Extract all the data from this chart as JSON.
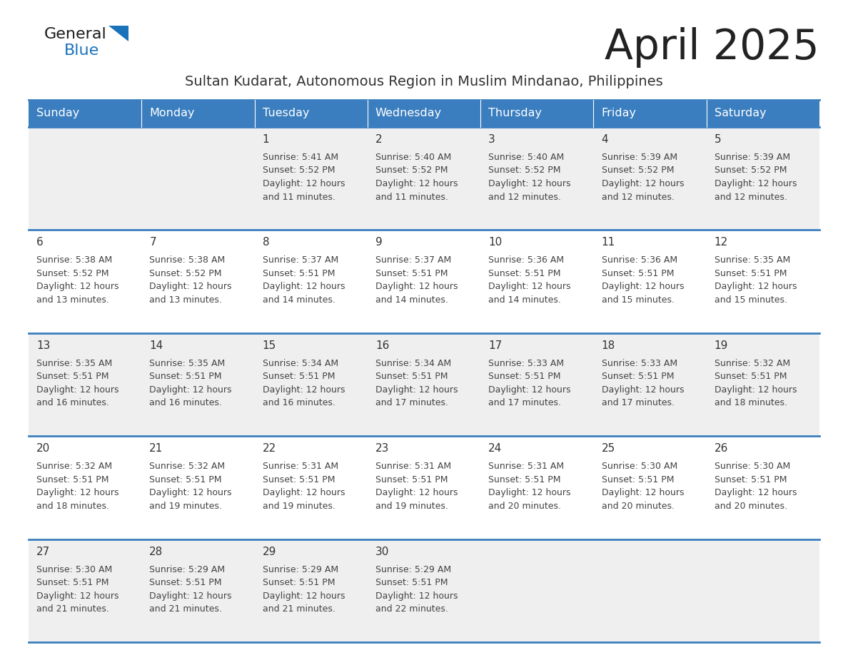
{
  "title": "April 2025",
  "subtitle": "Sultan Kudarat, Autonomous Region in Muslim Mindanao, Philippines",
  "days_of_week": [
    "Sunday",
    "Monday",
    "Tuesday",
    "Wednesday",
    "Thursday",
    "Friday",
    "Saturday"
  ],
  "header_bg": "#3a7ebf",
  "header_text": "#ffffff",
  "row_bg_light": "#efefef",
  "row_bg_white": "#ffffff",
  "cell_border": "#3a7ebf",
  "title_color": "#222222",
  "subtitle_color": "#333333",
  "day_num_color": "#333333",
  "cell_text_color": "#444444",
  "logo_general_color": "#1a1a1a",
  "logo_blue_color": "#1a72bb",
  "calendar_data": [
    [
      null,
      null,
      {
        "day": 1,
        "sunrise": "5:41 AM",
        "sunset": "5:52 PM",
        "daylight": "Daylight: 12 hours",
        "daylight2": "and 11 minutes."
      },
      {
        "day": 2,
        "sunrise": "5:40 AM",
        "sunset": "5:52 PM",
        "daylight": "Daylight: 12 hours",
        "daylight2": "and 11 minutes."
      },
      {
        "day": 3,
        "sunrise": "5:40 AM",
        "sunset": "5:52 PM",
        "daylight": "Daylight: 12 hours",
        "daylight2": "and 12 minutes."
      },
      {
        "day": 4,
        "sunrise": "5:39 AM",
        "sunset": "5:52 PM",
        "daylight": "Daylight: 12 hours",
        "daylight2": "and 12 minutes."
      },
      {
        "day": 5,
        "sunrise": "5:39 AM",
        "sunset": "5:52 PM",
        "daylight": "Daylight: 12 hours",
        "daylight2": "and 12 minutes."
      }
    ],
    [
      {
        "day": 6,
        "sunrise": "5:38 AM",
        "sunset": "5:52 PM",
        "daylight": "Daylight: 12 hours",
        "daylight2": "and 13 minutes."
      },
      {
        "day": 7,
        "sunrise": "5:38 AM",
        "sunset": "5:52 PM",
        "daylight": "Daylight: 12 hours",
        "daylight2": "and 13 minutes."
      },
      {
        "day": 8,
        "sunrise": "5:37 AM",
        "sunset": "5:51 PM",
        "daylight": "Daylight: 12 hours",
        "daylight2": "and 14 minutes."
      },
      {
        "day": 9,
        "sunrise": "5:37 AM",
        "sunset": "5:51 PM",
        "daylight": "Daylight: 12 hours",
        "daylight2": "and 14 minutes."
      },
      {
        "day": 10,
        "sunrise": "5:36 AM",
        "sunset": "5:51 PM",
        "daylight": "Daylight: 12 hours",
        "daylight2": "and 14 minutes."
      },
      {
        "day": 11,
        "sunrise": "5:36 AM",
        "sunset": "5:51 PM",
        "daylight": "Daylight: 12 hours",
        "daylight2": "and 15 minutes."
      },
      {
        "day": 12,
        "sunrise": "5:35 AM",
        "sunset": "5:51 PM",
        "daylight": "Daylight: 12 hours",
        "daylight2": "and 15 minutes."
      }
    ],
    [
      {
        "day": 13,
        "sunrise": "5:35 AM",
        "sunset": "5:51 PM",
        "daylight": "Daylight: 12 hours",
        "daylight2": "and 16 minutes."
      },
      {
        "day": 14,
        "sunrise": "5:35 AM",
        "sunset": "5:51 PM",
        "daylight": "Daylight: 12 hours",
        "daylight2": "and 16 minutes."
      },
      {
        "day": 15,
        "sunrise": "5:34 AM",
        "sunset": "5:51 PM",
        "daylight": "Daylight: 12 hours",
        "daylight2": "and 16 minutes."
      },
      {
        "day": 16,
        "sunrise": "5:34 AM",
        "sunset": "5:51 PM",
        "daylight": "Daylight: 12 hours",
        "daylight2": "and 17 minutes."
      },
      {
        "day": 17,
        "sunrise": "5:33 AM",
        "sunset": "5:51 PM",
        "daylight": "Daylight: 12 hours",
        "daylight2": "and 17 minutes."
      },
      {
        "day": 18,
        "sunrise": "5:33 AM",
        "sunset": "5:51 PM",
        "daylight": "Daylight: 12 hours",
        "daylight2": "and 17 minutes."
      },
      {
        "day": 19,
        "sunrise": "5:32 AM",
        "sunset": "5:51 PM",
        "daylight": "Daylight: 12 hours",
        "daylight2": "and 18 minutes."
      }
    ],
    [
      {
        "day": 20,
        "sunrise": "5:32 AM",
        "sunset": "5:51 PM",
        "daylight": "Daylight: 12 hours",
        "daylight2": "and 18 minutes."
      },
      {
        "day": 21,
        "sunrise": "5:32 AM",
        "sunset": "5:51 PM",
        "daylight": "Daylight: 12 hours",
        "daylight2": "and 19 minutes."
      },
      {
        "day": 22,
        "sunrise": "5:31 AM",
        "sunset": "5:51 PM",
        "daylight": "Daylight: 12 hours",
        "daylight2": "and 19 minutes."
      },
      {
        "day": 23,
        "sunrise": "5:31 AM",
        "sunset": "5:51 PM",
        "daylight": "Daylight: 12 hours",
        "daylight2": "and 19 minutes."
      },
      {
        "day": 24,
        "sunrise": "5:31 AM",
        "sunset": "5:51 PM",
        "daylight": "Daylight: 12 hours",
        "daylight2": "and 20 minutes."
      },
      {
        "day": 25,
        "sunrise": "5:30 AM",
        "sunset": "5:51 PM",
        "daylight": "Daylight: 12 hours",
        "daylight2": "and 20 minutes."
      },
      {
        "day": 26,
        "sunrise": "5:30 AM",
        "sunset": "5:51 PM",
        "daylight": "Daylight: 12 hours",
        "daylight2": "and 20 minutes."
      }
    ],
    [
      {
        "day": 27,
        "sunrise": "5:30 AM",
        "sunset": "5:51 PM",
        "daylight": "Daylight: 12 hours",
        "daylight2": "and 21 minutes."
      },
      {
        "day": 28,
        "sunrise": "5:29 AM",
        "sunset": "5:51 PM",
        "daylight": "Daylight: 12 hours",
        "daylight2": "and 21 minutes."
      },
      {
        "day": 29,
        "sunrise": "5:29 AM",
        "sunset": "5:51 PM",
        "daylight": "Daylight: 12 hours",
        "daylight2": "and 21 minutes."
      },
      {
        "day": 30,
        "sunrise": "5:29 AM",
        "sunset": "5:51 PM",
        "daylight": "Daylight: 12 hours",
        "daylight2": "and 22 minutes."
      },
      null,
      null,
      null
    ]
  ]
}
